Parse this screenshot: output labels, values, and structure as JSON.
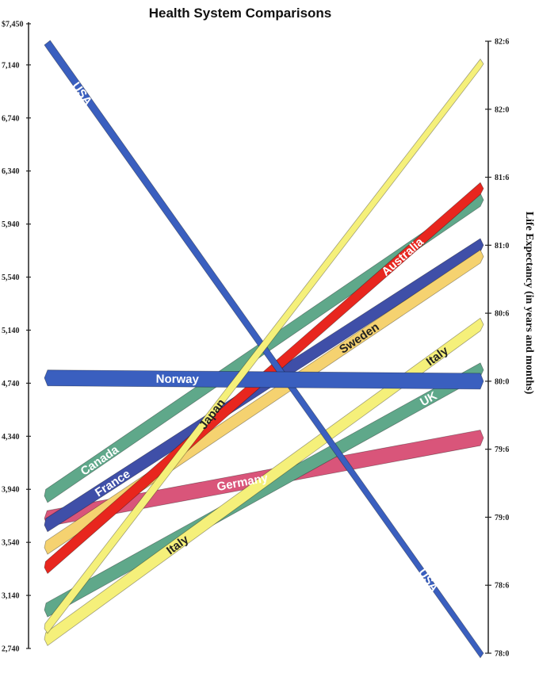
{
  "chart_data": {
    "type": "line",
    "title": "Health System Comparisons",
    "left_axis": {
      "ylabel": "",
      "ylim": [
        2740,
        7450
      ],
      "tick_labels": [
        "$7,450",
        "7,140",
        "6,740",
        "6,340",
        "5,940",
        "5,540",
        "5,140",
        "4,740",
        "4,340",
        "3,940",
        "3,540",
        "3,140",
        "2,740"
      ],
      "tick_values": [
        7450,
        7140,
        6740,
        6340,
        5940,
        5540,
        5140,
        4740,
        4340,
        3940,
        3540,
        3140,
        2740
      ]
    },
    "right_axis": {
      "ylabel": "Life Expectancy (in years and months)",
      "ylim_months": [
        936,
        990
      ],
      "tick_labels": [
        "82:6",
        "82:0",
        "81:6",
        "81:0",
        "80:6",
        "80:0",
        "79:6",
        "79:0",
        "78:6",
        "78:0"
      ],
      "tick_values_months": [
        990,
        984,
        978,
        972,
        966,
        960,
        954,
        948,
        942,
        936
      ]
    },
    "series": [
      {
        "name": "USA",
        "spending": 7290,
        "life_expectancy_months": 936,
        "color": "#3a5fbf",
        "labels": [
          "USA",
          "USA"
        ]
      },
      {
        "name": "Norway",
        "spending": 4780,
        "life_expectancy_months": 960,
        "color": "#3a5fbf",
        "labels": [
          "Norway"
        ]
      },
      {
        "name": "Canada",
        "spending": 3890,
        "life_expectancy_months": 976,
        "color": "#5fa88a",
        "labels": [
          "Canada"
        ]
      },
      {
        "name": "France",
        "spending": 3670,
        "life_expectancy_months": 972,
        "color": "#3f4fa8",
        "labels": [
          "France"
        ]
      },
      {
        "name": "Australia",
        "spending": 3350,
        "life_expectancy_months": 977,
        "color": "#e8261e",
        "labels": [
          "Australia"
        ]
      },
      {
        "name": "Sweden",
        "spending": 3500,
        "life_expectancy_months": 971,
        "color": "#f5d270",
        "labels": [
          "Sweden"
        ]
      },
      {
        "name": "Germany",
        "spending": 3720,
        "life_expectancy_months": 955,
        "color": "#d9557a",
        "labels": [
          "Germany"
        ]
      },
      {
        "name": "UK",
        "spending": 3030,
        "life_expectancy_months": 961,
        "color": "#5fa88a",
        "labels": [
          "UK"
        ]
      },
      {
        "name": "Italy",
        "spending": 2810,
        "life_expectancy_months": 965,
        "color": "#f5f07a",
        "labels": [
          "Italy",
          "Italy"
        ]
      },
      {
        "name": "Japan",
        "spending": 2890,
        "life_expectancy_months": 988,
        "color": "#f5f07a",
        "labels": [
          "Japan"
        ]
      }
    ]
  }
}
